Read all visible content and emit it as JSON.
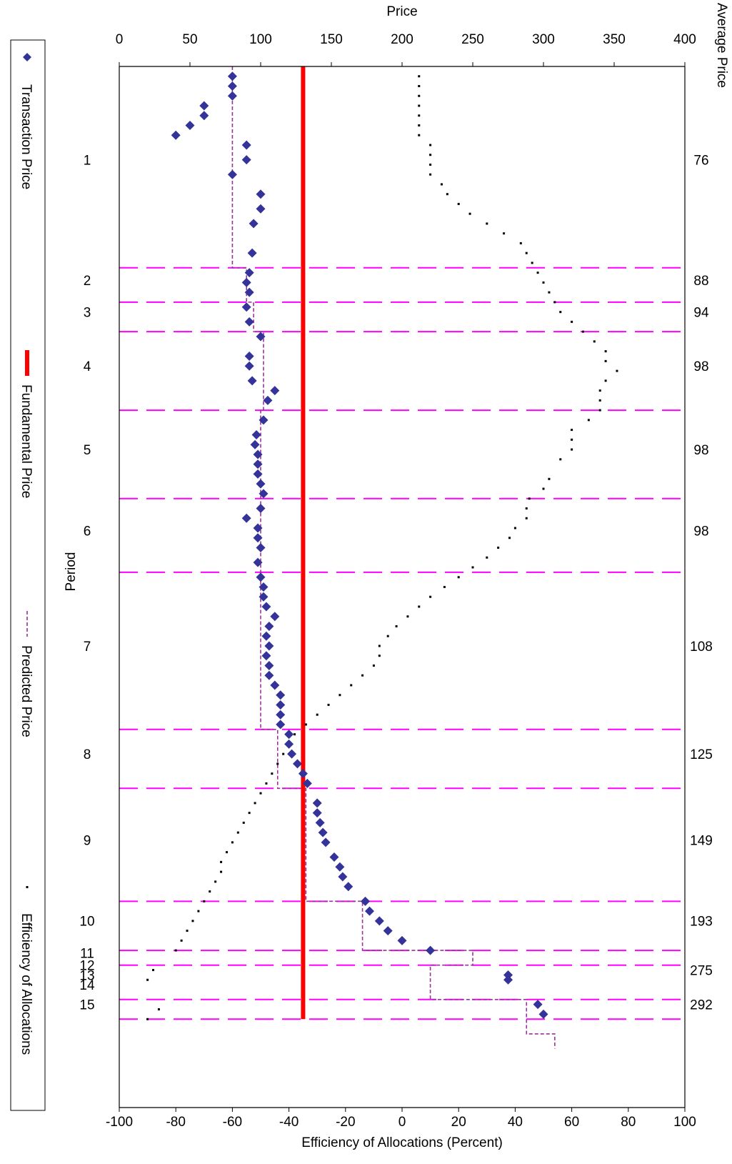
{
  "chart_data": {
    "type": "scatter",
    "title": "",
    "xlabel": "Period",
    "ylabel": "Price",
    "y2label": "Efficiency of Allocations (Percent)",
    "top_axis_title": "Average Price",
    "ylim": [
      0,
      400
    ],
    "y2lim": [
      -100,
      100
    ],
    "y_ticks": [
      "0",
      "50",
      "100",
      "150",
      "200",
      "250",
      "300",
      "350",
      "400"
    ],
    "y2_ticks": [
      "-100",
      "-80",
      "-60",
      "-40",
      "-20",
      "0",
      "20",
      "40",
      "60",
      "80",
      "100"
    ],
    "grid": false,
    "legend_position": "bottom",
    "x_range": [
      0,
      212
    ],
    "period_boundaries": [
      41,
      48,
      54,
      70,
      88,
      103,
      135,
      147,
      170,
      180,
      183,
      190,
      194
    ],
    "periods": [
      {
        "label": "1",
        "x": 20
      },
      {
        "label": "2",
        "x": 44.5
      },
      {
        "label": "3",
        "x": 51
      },
      {
        "label": "4",
        "x": 62
      },
      {
        "label": "5",
        "x": 79
      },
      {
        "label": "6",
        "x": 95.5
      },
      {
        "label": "7",
        "x": 119
      },
      {
        "label": "8",
        "x": 141
      },
      {
        "label": "9",
        "x": 158.5
      },
      {
        "label": "10",
        "x": 175
      },
      {
        "label": "11",
        "x": 181.5
      },
      {
        "label": "12",
        "x": 184
      },
      {
        "label": "13",
        "x": 186
      },
      {
        "label": "14",
        "x": 188
      },
      {
        "label": "15",
        "x": 192
      }
    ],
    "average_prices": [
      {
        "label": "76",
        "x": 20
      },
      {
        "label": "88",
        "x": 44.5
      },
      {
        "label": "94",
        "x": 51
      },
      {
        "label": "98",
        "x": 62
      },
      {
        "label": "98",
        "x": 79
      },
      {
        "label": "98",
        "x": 95.5
      },
      {
        "label": "108",
        "x": 119
      },
      {
        "label": "125",
        "x": 141
      },
      {
        "label": "149",
        "x": 158.5
      },
      {
        "label": "193",
        "x": 175
      },
      {
        "label": "275",
        "x": 185
      },
      {
        "label": "292",
        "x": 192
      }
    ],
    "series": [
      {
        "name": "Transaction Price",
        "color": "#333399",
        "points": [
          [
            2,
            80
          ],
          [
            4,
            80
          ],
          [
            6,
            80
          ],
          [
            8,
            60
          ],
          [
            10,
            60
          ],
          [
            12,
            50
          ],
          [
            14,
            40
          ],
          [
            16,
            90
          ],
          [
            19,
            90
          ],
          [
            22,
            80
          ],
          [
            26,
            100
          ],
          [
            29,
            100
          ],
          [
            32,
            95
          ],
          [
            38,
            94
          ],
          [
            42,
            92
          ],
          [
            44,
            90
          ],
          [
            46,
            92
          ],
          [
            49,
            90
          ],
          [
            52,
            92
          ],
          [
            55,
            100
          ],
          [
            59,
            92
          ],
          [
            61,
            92
          ],
          [
            64,
            94
          ],
          [
            66,
            110
          ],
          [
            68,
            105
          ],
          [
            72,
            102
          ],
          [
            75,
            97
          ],
          [
            77,
            96
          ],
          [
            79,
            98
          ],
          [
            81,
            98
          ],
          [
            83,
            98
          ],
          [
            85,
            100
          ],
          [
            87,
            102
          ],
          [
            90,
            100
          ],
          [
            92,
            90
          ],
          [
            94,
            98
          ],
          [
            96,
            98
          ],
          [
            98,
            100
          ],
          [
            101,
            98
          ],
          [
            104,
            100
          ],
          [
            106,
            102
          ],
          [
            108,
            102
          ],
          [
            110,
            104
          ],
          [
            112,
            110
          ],
          [
            114,
            106
          ],
          [
            116,
            104
          ],
          [
            118,
            106
          ],
          [
            120,
            104
          ],
          [
            122,
            106
          ],
          [
            124,
            106
          ],
          [
            126,
            110
          ],
          [
            128,
            114
          ],
          [
            130,
            114
          ],
          [
            132,
            114
          ],
          [
            134,
            114
          ],
          [
            136,
            120
          ],
          [
            138,
            120
          ],
          [
            140,
            122
          ],
          [
            142,
            126
          ],
          [
            144,
            130
          ],
          [
            146,
            133
          ],
          [
            150,
            140
          ],
          [
            152,
            140
          ],
          [
            154,
            142
          ],
          [
            156,
            144
          ],
          [
            158,
            146
          ],
          [
            161,
            152
          ],
          [
            163,
            156
          ],
          [
            165,
            158
          ],
          [
            167,
            162
          ],
          [
            170,
            174
          ],
          [
            172,
            177
          ],
          [
            174,
            184
          ],
          [
            176,
            190
          ],
          [
            178,
            200
          ],
          [
            180,
            220
          ],
          [
            185,
            275
          ],
          [
            186,
            275
          ],
          [
            191,
            296
          ],
          [
            193,
            300
          ]
        ]
      },
      {
        "name": "Fundamental Price",
        "color": "#ff0000",
        "points": [
          [
            0,
            130
          ],
          [
            194,
            130
          ]
        ]
      },
      {
        "name": "Predicted Price",
        "color": "#993399",
        "points": [
          [
            0,
            80
          ],
          [
            41,
            80
          ],
          [
            41,
            90
          ],
          [
            48,
            90
          ],
          [
            48,
            95
          ],
          [
            54,
            95
          ],
          [
            54,
            102
          ],
          [
            70,
            102
          ],
          [
            70,
            100
          ],
          [
            88,
            100
          ],
          [
            88,
            100
          ],
          [
            103,
            100
          ],
          [
            103,
            100
          ],
          [
            135,
            100
          ],
          [
            135,
            112
          ],
          [
            147,
            112
          ],
          [
            147,
            132
          ],
          [
            170,
            132
          ],
          [
            170,
            172
          ],
          [
            180,
            172
          ],
          [
            180,
            250
          ],
          [
            183,
            250
          ],
          [
            183,
            220
          ],
          [
            190,
            220
          ],
          [
            190,
            288
          ],
          [
            197,
            288
          ],
          [
            197,
            308
          ],
          [
            200,
            308
          ]
        ]
      },
      {
        "name": "Efficiency of Allocations",
        "color": "#000000",
        "points": [
          [
            2,
            6
          ],
          [
            4,
            6
          ],
          [
            6,
            6
          ],
          [
            8,
            6
          ],
          [
            10,
            6
          ],
          [
            12,
            6
          ],
          [
            14,
            6
          ],
          [
            16,
            10
          ],
          [
            18,
            10
          ],
          [
            20,
            10
          ],
          [
            22,
            10
          ],
          [
            24,
            14
          ],
          [
            26,
            16
          ],
          [
            28,
            20
          ],
          [
            30,
            24
          ],
          [
            32,
            30
          ],
          [
            34,
            36
          ],
          [
            36,
            42
          ],
          [
            38,
            44
          ],
          [
            40,
            46
          ],
          [
            42,
            48
          ],
          [
            44,
            50
          ],
          [
            46,
            52
          ],
          [
            48,
            54
          ],
          [
            50,
            56
          ],
          [
            52,
            60
          ],
          [
            54,
            64
          ],
          [
            56,
            68
          ],
          [
            58,
            72
          ],
          [
            60,
            72
          ],
          [
            62,
            76
          ],
          [
            64,
            72
          ],
          [
            66,
            70
          ],
          [
            68,
            70
          ],
          [
            70,
            70
          ],
          [
            72,
            66
          ],
          [
            74,
            60
          ],
          [
            76,
            60
          ],
          [
            78,
            60
          ],
          [
            80,
            56
          ],
          [
            84,
            52
          ],
          [
            86,
            50
          ],
          [
            88,
            45
          ],
          [
            90,
            44
          ],
          [
            92,
            44
          ],
          [
            94,
            40
          ],
          [
            96,
            38
          ],
          [
            98,
            34
          ],
          [
            100,
            30
          ],
          [
            102,
            25
          ],
          [
            104,
            20
          ],
          [
            106,
            15
          ],
          [
            108,
            10
          ],
          [
            110,
            6
          ],
          [
            112,
            2
          ],
          [
            114,
            -2
          ],
          [
            116,
            -5
          ],
          [
            118,
            -8
          ],
          [
            120,
            -8
          ],
          [
            122,
            -10
          ],
          [
            124,
            -14
          ],
          [
            126,
            -18
          ],
          [
            128,
            -22
          ],
          [
            130,
            -26
          ],
          [
            132,
            -30
          ],
          [
            134,
            -34
          ],
          [
            136,
            -38
          ],
          [
            138,
            -40
          ],
          [
            140,
            -42
          ],
          [
            142,
            -44
          ],
          [
            144,
            -46
          ],
          [
            146,
            -48
          ],
          [
            148,
            -50
          ],
          [
            150,
            -52
          ],
          [
            152,
            -54
          ],
          [
            154,
            -56
          ],
          [
            156,
            -58
          ],
          [
            158,
            -60
          ],
          [
            160,
            -62
          ],
          [
            162,
            -64
          ],
          [
            164,
            -64
          ],
          [
            166,
            -66
          ],
          [
            168,
            -68
          ],
          [
            170,
            -70
          ],
          [
            172,
            -72
          ],
          [
            174,
            -74
          ],
          [
            176,
            -76
          ],
          [
            178,
            -78
          ],
          [
            180,
            -80
          ],
          [
            184,
            -88
          ],
          [
            186,
            -90
          ],
          [
            192,
            -86
          ],
          [
            194,
            -90
          ]
        ]
      }
    ],
    "legend": [
      {
        "label": "Transaction Price",
        "marker": "diamond",
        "color": "#333399"
      },
      {
        "label": "Fundamental Price",
        "marker": "thick-line",
        "color": "#ff0000"
      },
      {
        "label": "Predicted Price",
        "marker": "dashed-line",
        "color": "#993399"
      },
      {
        "label": "Efficiency of Allocations",
        "marker": "dot",
        "color": "#000000"
      }
    ]
  }
}
